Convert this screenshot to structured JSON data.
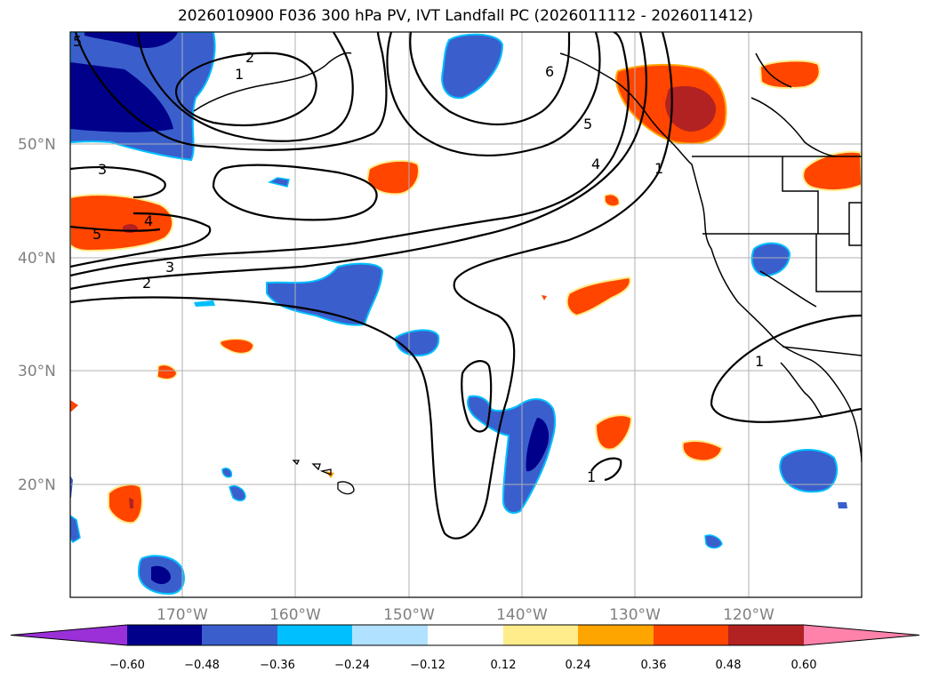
{
  "title": "2026010900 F036 300 hPa PV, IVT Landfall PC (2026011112 - 2026011412)",
  "latitude_labels": [
    "50°N",
    "40°N",
    "30°N",
    "20°N"
  ],
  "longitude_labels": [
    "170°W",
    "160°W",
    "150°W",
    "140°W",
    "130°W",
    "120°W"
  ],
  "contour_labels": [
    "5",
    "2",
    "1",
    "3",
    "4",
    "5",
    "3",
    "2",
    "6",
    "5",
    "4",
    "1",
    "1",
    "1"
  ],
  "colorbar": {
    "ticks": [
      "−0.60",
      "−0.48",
      "−0.36",
      "−0.24",
      "−0.12",
      "0.12",
      "0.24",
      "0.36",
      "0.48",
      "0.60"
    ],
    "colors": [
      "#9b30d9",
      "#00008b",
      "#3a5fcd",
      "#00bfff",
      "#b0e2ff",
      "#ffffff",
      "#ffec8b",
      "#ffa500",
      "#ff4500",
      "#b22222",
      "#ff82ab"
    ]
  }
}
